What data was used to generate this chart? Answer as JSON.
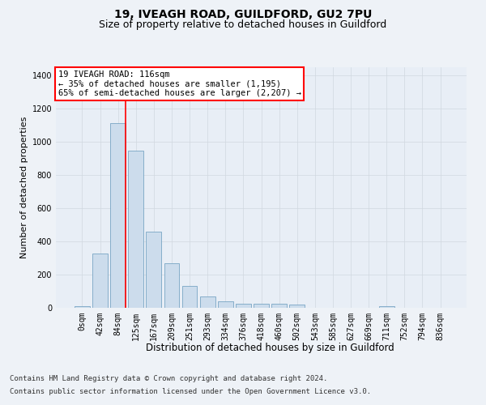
{
  "title1": "19, IVEAGH ROAD, GUILDFORD, GU2 7PU",
  "title2": "Size of property relative to detached houses in Guildford",
  "xlabel": "Distribution of detached houses by size in Guildford",
  "ylabel": "Number of detached properties",
  "bin_labels": [
    "0sqm",
    "42sqm",
    "84sqm",
    "125sqm",
    "167sqm",
    "209sqm",
    "251sqm",
    "293sqm",
    "334sqm",
    "376sqm",
    "418sqm",
    "460sqm",
    "502sqm",
    "543sqm",
    "585sqm",
    "627sqm",
    "669sqm",
    "711sqm",
    "752sqm",
    "794sqm",
    "836sqm"
  ],
  "bar_heights": [
    10,
    327,
    1110,
    945,
    460,
    270,
    130,
    68,
    40,
    22,
    25,
    25,
    18,
    0,
    0,
    0,
    0,
    12,
    0,
    0,
    0
  ],
  "bar_color": "#ccdcec",
  "bar_edge_color": "#6699bb",
  "vline_color": "red",
  "vline_x_bar_index": 2,
  "ylim": [
    0,
    1450
  ],
  "yticks": [
    0,
    200,
    400,
    600,
    800,
    1000,
    1200,
    1400
  ],
  "annotation_text": "19 IVEAGH ROAD: 116sqm\n← 35% of detached houses are smaller (1,195)\n65% of semi-detached houses are larger (2,207) →",
  "annotation_box_facecolor": "white",
  "annotation_box_edgecolor": "red",
  "footer1": "Contains HM Land Registry data © Crown copyright and database right 2024.",
  "footer2": "Contains public sector information licensed under the Open Government Licence v3.0.",
  "bg_color": "#eef2f7",
  "plot_bg_color": "#e8eef6",
  "grid_color": "#d0d8e0",
  "title1_fontsize": 10,
  "title2_fontsize": 9,
  "xlabel_fontsize": 8.5,
  "ylabel_fontsize": 8,
  "tick_fontsize": 7,
  "footer_fontsize": 6.5,
  "annot_fontsize": 7.5
}
